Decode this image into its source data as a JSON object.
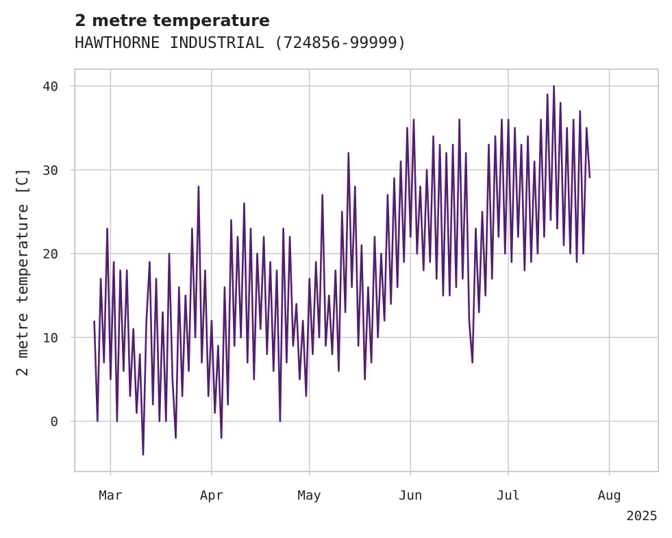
{
  "chart_data": {
    "type": "line",
    "title": "2 metre temperature",
    "subtitle": "HAWTHORNE INDUSTRIAL (724856-99999)",
    "xlabel": "",
    "ylabel": "2 metre temperature [C]",
    "year_label": "2025",
    "x_ticks": [
      {
        "label": "Mar",
        "date": "2025-03-01"
      },
      {
        "label": "Apr",
        "date": "2025-04-01"
      },
      {
        "label": "May",
        "date": "2025-05-01"
      },
      {
        "label": "Jun",
        "date": "2025-06-01"
      },
      {
        "label": "Jul",
        "date": "2025-07-01"
      },
      {
        "label": "Aug",
        "date": "2025-08-01"
      }
    ],
    "y_ticks": [
      0,
      10,
      20,
      30,
      40
    ],
    "xlim": [
      "2025-02-18",
      "2025-08-16"
    ],
    "ylim": [
      -6,
      42
    ],
    "grid": true,
    "colors": {
      "line": "#531f6e",
      "grid": "#cccccc",
      "frame": "#cccccc"
    },
    "series": [
      {
        "values": [
          {
            "x": "2025-02-24",
            "y": 12
          },
          {
            "x": "2025-02-25",
            "y": 0
          },
          {
            "x": "2025-02-26",
            "y": 17
          },
          {
            "x": "2025-02-27",
            "y": 7
          },
          {
            "x": "2025-02-28",
            "y": 23
          },
          {
            "x": "2025-03-01",
            "y": 5
          },
          {
            "x": "2025-03-02",
            "y": 19
          },
          {
            "x": "2025-03-03",
            "y": 0
          },
          {
            "x": "2025-03-04",
            "y": 18
          },
          {
            "x": "2025-03-05",
            "y": 6
          },
          {
            "x": "2025-03-06",
            "y": 18
          },
          {
            "x": "2025-03-07",
            "y": 3
          },
          {
            "x": "2025-03-08",
            "y": 11
          },
          {
            "x": "2025-03-09",
            "y": 1
          },
          {
            "x": "2025-03-10",
            "y": 8
          },
          {
            "x": "2025-03-11",
            "y": -4
          },
          {
            "x": "2025-03-12",
            "y": 12
          },
          {
            "x": "2025-03-13",
            "y": 19
          },
          {
            "x": "2025-03-14",
            "y": 2
          },
          {
            "x": "2025-03-15",
            "y": 17
          },
          {
            "x": "2025-03-16",
            "y": 0
          },
          {
            "x": "2025-03-17",
            "y": 13
          },
          {
            "x": "2025-03-18",
            "y": 0
          },
          {
            "x": "2025-03-19",
            "y": 20
          },
          {
            "x": "2025-03-20",
            "y": 5
          },
          {
            "x": "2025-03-21",
            "y": -2
          },
          {
            "x": "2025-03-22",
            "y": 16
          },
          {
            "x": "2025-03-23",
            "y": 3
          },
          {
            "x": "2025-03-24",
            "y": 15
          },
          {
            "x": "2025-03-25",
            "y": 6
          },
          {
            "x": "2025-03-26",
            "y": 23
          },
          {
            "x": "2025-03-27",
            "y": 10
          },
          {
            "x": "2025-03-28",
            "y": 28
          },
          {
            "x": "2025-03-29",
            "y": 7
          },
          {
            "x": "2025-03-30",
            "y": 18
          },
          {
            "x": "2025-03-31",
            "y": 3
          },
          {
            "x": "2025-04-01",
            "y": 12
          },
          {
            "x": "2025-04-02",
            "y": 1
          },
          {
            "x": "2025-04-03",
            "y": 9
          },
          {
            "x": "2025-04-04",
            "y": -2
          },
          {
            "x": "2025-04-05",
            "y": 16
          },
          {
            "x": "2025-04-06",
            "y": 2
          },
          {
            "x": "2025-04-07",
            "y": 24
          },
          {
            "x": "2025-04-08",
            "y": 9
          },
          {
            "x": "2025-04-09",
            "y": 22
          },
          {
            "x": "2025-04-10",
            "y": 10
          },
          {
            "x": "2025-04-11",
            "y": 26
          },
          {
            "x": "2025-04-12",
            "y": 7
          },
          {
            "x": "2025-04-13",
            "y": 23
          },
          {
            "x": "2025-04-14",
            "y": 5
          },
          {
            "x": "2025-04-15",
            "y": 20
          },
          {
            "x": "2025-04-16",
            "y": 11
          },
          {
            "x": "2025-04-17",
            "y": 22
          },
          {
            "x": "2025-04-18",
            "y": 8
          },
          {
            "x": "2025-04-19",
            "y": 19
          },
          {
            "x": "2025-04-20",
            "y": 6
          },
          {
            "x": "2025-04-21",
            "y": 18
          },
          {
            "x": "2025-04-22",
            "y": 0
          },
          {
            "x": "2025-04-23",
            "y": 23
          },
          {
            "x": "2025-04-24",
            "y": 7
          },
          {
            "x": "2025-04-25",
            "y": 22
          },
          {
            "x": "2025-04-26",
            "y": 9
          },
          {
            "x": "2025-04-27",
            "y": 14
          },
          {
            "x": "2025-04-28",
            "y": 5
          },
          {
            "x": "2025-04-29",
            "y": 12
          },
          {
            "x": "2025-04-30",
            "y": 3
          },
          {
            "x": "2025-05-01",
            "y": 17
          },
          {
            "x": "2025-05-02",
            "y": 8
          },
          {
            "x": "2025-05-03",
            "y": 19
          },
          {
            "x": "2025-05-04",
            "y": 10
          },
          {
            "x": "2025-05-05",
            "y": 27
          },
          {
            "x": "2025-05-06",
            "y": 9
          },
          {
            "x": "2025-05-07",
            "y": 15
          },
          {
            "x": "2025-05-08",
            "y": 8
          },
          {
            "x": "2025-05-09",
            "y": 18
          },
          {
            "x": "2025-05-10",
            "y": 6
          },
          {
            "x": "2025-05-11",
            "y": 25
          },
          {
            "x": "2025-05-12",
            "y": 13
          },
          {
            "x": "2025-05-13",
            "y": 32
          },
          {
            "x": "2025-05-14",
            "y": 16
          },
          {
            "x": "2025-05-15",
            "y": 28
          },
          {
            "x": "2025-05-16",
            "y": 9
          },
          {
            "x": "2025-05-17",
            "y": 21
          },
          {
            "x": "2025-05-18",
            "y": 5
          },
          {
            "x": "2025-05-19",
            "y": 16
          },
          {
            "x": "2025-05-20",
            "y": 7
          },
          {
            "x": "2025-05-21",
            "y": 22
          },
          {
            "x": "2025-05-22",
            "y": 10
          },
          {
            "x": "2025-05-23",
            "y": 20
          },
          {
            "x": "2025-05-24",
            "y": 12
          },
          {
            "x": "2025-05-25",
            "y": 27
          },
          {
            "x": "2025-05-26",
            "y": 14
          },
          {
            "x": "2025-05-27",
            "y": 29
          },
          {
            "x": "2025-05-28",
            "y": 16
          },
          {
            "x": "2025-05-29",
            "y": 31
          },
          {
            "x": "2025-05-30",
            "y": 19
          },
          {
            "x": "2025-05-31",
            "y": 35
          },
          {
            "x": "2025-06-01",
            "y": 22
          },
          {
            "x": "2025-06-02",
            "y": 36
          },
          {
            "x": "2025-06-03",
            "y": 20
          },
          {
            "x": "2025-06-04",
            "y": 28
          },
          {
            "x": "2025-06-05",
            "y": 18
          },
          {
            "x": "2025-06-06",
            "y": 30
          },
          {
            "x": "2025-06-07",
            "y": 19
          },
          {
            "x": "2025-06-08",
            "y": 34
          },
          {
            "x": "2025-06-09",
            "y": 17
          },
          {
            "x": "2025-06-10",
            "y": 33
          },
          {
            "x": "2025-06-11",
            "y": 15
          },
          {
            "x": "2025-06-12",
            "y": 32
          },
          {
            "x": "2025-06-13",
            "y": 15
          },
          {
            "x": "2025-06-14",
            "y": 33
          },
          {
            "x": "2025-06-15",
            "y": 16
          },
          {
            "x": "2025-06-16",
            "y": 36
          },
          {
            "x": "2025-06-17",
            "y": 17
          },
          {
            "x": "2025-06-18",
            "y": 32
          },
          {
            "x": "2025-06-19",
            "y": 12
          },
          {
            "x": "2025-06-20",
            "y": 7
          },
          {
            "x": "2025-06-21",
            "y": 23
          },
          {
            "x": "2025-06-22",
            "y": 13
          },
          {
            "x": "2025-06-23",
            "y": 25
          },
          {
            "x": "2025-06-24",
            "y": 15
          },
          {
            "x": "2025-06-25",
            "y": 33
          },
          {
            "x": "2025-06-26",
            "y": 17
          },
          {
            "x": "2025-06-27",
            "y": 34
          },
          {
            "x": "2025-06-28",
            "y": 22
          },
          {
            "x": "2025-06-29",
            "y": 36
          },
          {
            "x": "2025-06-30",
            "y": 20
          },
          {
            "x": "2025-07-01",
            "y": 36
          },
          {
            "x": "2025-07-02",
            "y": 19
          },
          {
            "x": "2025-07-03",
            "y": 35
          },
          {
            "x": "2025-07-04",
            "y": 22
          },
          {
            "x": "2025-07-05",
            "y": 33
          },
          {
            "x": "2025-07-06",
            "y": 18
          },
          {
            "x": "2025-07-07",
            "y": 34
          },
          {
            "x": "2025-07-08",
            "y": 19
          },
          {
            "x": "2025-07-09",
            "y": 31
          },
          {
            "x": "2025-07-10",
            "y": 20
          },
          {
            "x": "2025-07-11",
            "y": 36
          },
          {
            "x": "2025-07-12",
            "y": 22
          },
          {
            "x": "2025-07-13",
            "y": 39
          },
          {
            "x": "2025-07-14",
            "y": 24
          },
          {
            "x": "2025-07-15",
            "y": 40
          },
          {
            "x": "2025-07-16",
            "y": 23
          },
          {
            "x": "2025-07-17",
            "y": 38
          },
          {
            "x": "2025-07-18",
            "y": 21
          },
          {
            "x": "2025-07-19",
            "y": 35
          },
          {
            "x": "2025-07-20",
            "y": 20
          },
          {
            "x": "2025-07-21",
            "y": 36
          },
          {
            "x": "2025-07-22",
            "y": 19
          },
          {
            "x": "2025-07-23",
            "y": 37
          },
          {
            "x": "2025-07-24",
            "y": 20
          },
          {
            "x": "2025-07-25",
            "y": 35
          },
          {
            "x": "2025-07-26",
            "y": 29
          }
        ]
      }
    ]
  }
}
